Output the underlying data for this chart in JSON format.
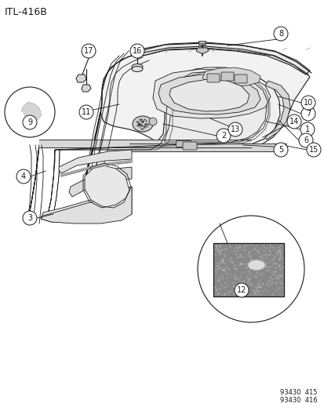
{
  "title": "ITL–416B",
  "bg_color": "#ffffff",
  "line_color": "#1a1a1a",
  "fig_width": 4.14,
  "fig_height": 5.33,
  "dpi": 100,
  "footer_lines": [
    "93430  415",
    "93430  416"
  ]
}
